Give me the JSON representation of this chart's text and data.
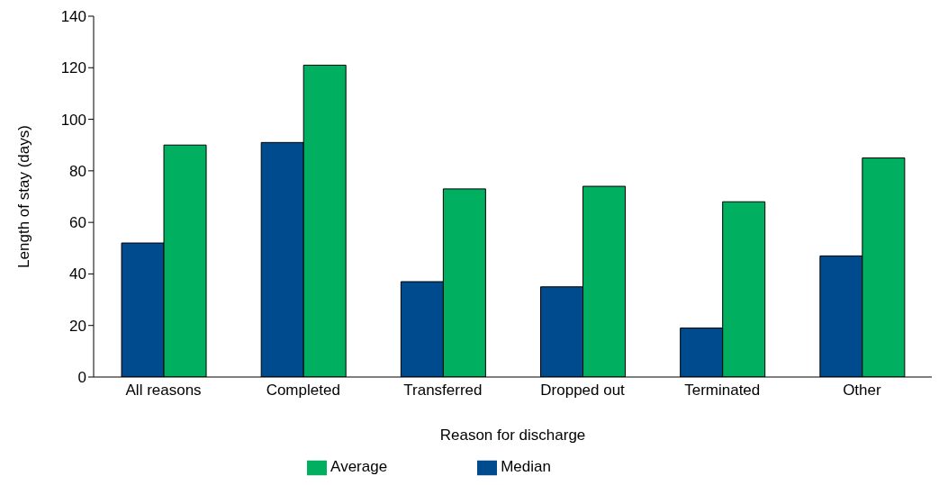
{
  "chart_data": {
    "type": "bar",
    "xlabel": "Reason for discharge",
    "ylabel": "Length of stay (days)",
    "categories": [
      "All reasons",
      "Completed",
      "Transferred",
      "Dropped out",
      "Terminated",
      "Other"
    ],
    "series": [
      {
        "name": "Median",
        "color": "#004b8d",
        "values": [
          52,
          91,
          37,
          35,
          19,
          47
        ]
      },
      {
        "name": "Average",
        "color": "#00b060",
        "values": [
          90,
          121,
          73,
          74,
          68,
          85
        ]
      }
    ],
    "ylim": [
      0,
      140
    ],
    "yticks": [
      0,
      20,
      40,
      60,
      80,
      100,
      120,
      140
    ],
    "grid": false,
    "legend": "bottom"
  }
}
